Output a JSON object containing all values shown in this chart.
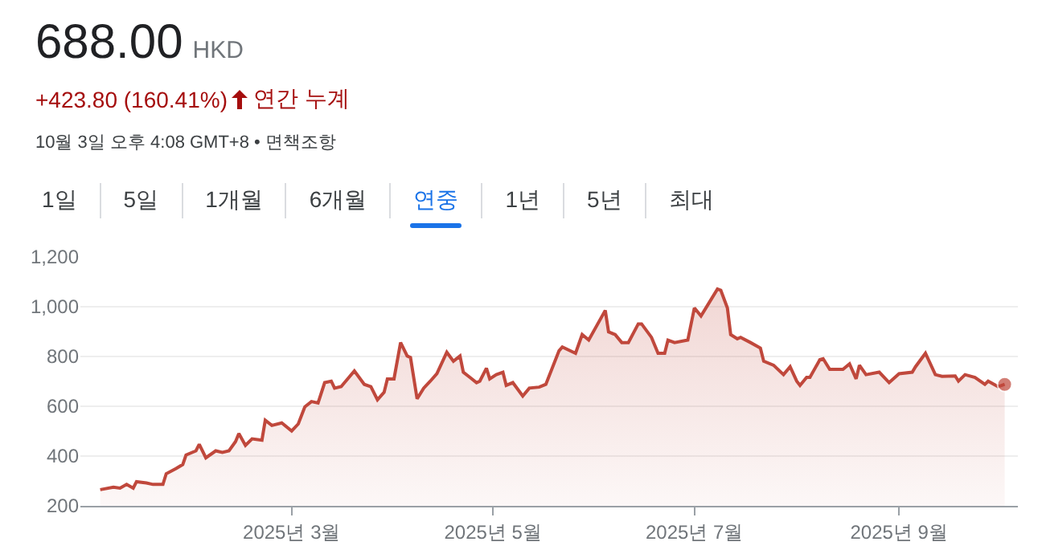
{
  "chart_data": {
    "type": "area",
    "title": "688.00",
    "subtitle": "HKD",
    "annotations": [
      "+423.80 (160.41%)",
      "연간 누계",
      "10월 3일 오후 4:08 GMT+8 • 면책조항",
      "1일",
      "5일",
      "1개월",
      "6개월",
      "연중",
      "1년",
      "5년",
      "최대"
    ],
    "x": [
      "2025-01-02",
      "2025-01-06",
      "2025-01-08",
      "2025-01-10",
      "2025-01-12",
      "2025-01-13",
      "2025-01-16",
      "2025-01-18",
      "2025-01-21",
      "2025-01-22",
      "2025-01-25",
      "2025-01-27",
      "2025-01-28",
      "2025-01-31",
      "2025-02-01",
      "2025-02-03",
      "2025-02-06",
      "2025-02-08",
      "2025-02-10",
      "2025-02-12",
      "2025-02-13",
      "2025-02-15",
      "2025-02-17",
      "2025-02-20",
      "2025-02-21",
      "2025-02-23",
      "2025-02-26",
      "2025-03-01",
      "2025-03-03",
      "2025-03-05",
      "2025-03-07",
      "2025-03-09",
      "2025-03-11",
      "2025-03-13",
      "2025-03-14",
      "2025-03-16",
      "2025-03-20",
      "2025-03-23",
      "2025-03-25",
      "2025-03-27",
      "2025-03-29",
      "2025-03-30",
      "2025-04-01",
      "2025-04-03",
      "2025-04-05",
      "2025-04-06",
      "2025-04-08",
      "2025-04-10",
      "2025-04-12",
      "2025-04-14",
      "2025-04-17",
      "2025-04-19",
      "2025-04-21",
      "2025-04-22",
      "2025-04-24",
      "2025-04-26",
      "2025-04-27",
      "2025-04-29",
      "2025-04-30",
      "2025-05-02",
      "2025-05-04",
      "2025-05-05",
      "2025-05-07",
      "2025-05-10",
      "2025-05-12",
      "2025-05-15",
      "2025-05-17",
      "2025-05-21",
      "2025-05-22",
      "2025-05-26",
      "2025-05-28",
      "2025-05-30",
      "2025-06-04",
      "2025-06-05",
      "2025-06-07",
      "2025-06-09",
      "2025-06-11",
      "2025-06-14",
      "2025-06-15",
      "2025-06-18",
      "2025-06-20",
      "2025-06-22",
      "2025-06-23",
      "2025-06-25",
      "2025-06-29",
      "2025-07-01",
      "2025-07-03",
      "2025-07-05",
      "2025-07-08",
      "2025-07-09",
      "2025-07-11",
      "2025-07-12",
      "2025-07-14",
      "2025-07-15",
      "2025-07-18",
      "2025-07-21",
      "2025-07-22",
      "2025-07-25",
      "2025-07-28",
      "2025-07-30",
      "2025-08-01",
      "2025-08-02",
      "2025-08-04",
      "2025-08-05",
      "2025-08-08",
      "2025-08-09",
      "2025-08-11",
      "2025-08-15",
      "2025-08-17",
      "2025-08-19",
      "2025-08-20",
      "2025-08-22",
      "2025-08-26",
      "2025-08-29",
      "2025-09-01",
      "2025-09-05",
      "2025-09-06",
      "2025-09-09",
      "2025-09-12",
      "2025-09-14",
      "2025-09-18",
      "2025-09-19",
      "2025-09-21",
      "2025-09-24",
      "2025-09-27",
      "2025-09-28",
      "2025-10-01",
      "2025-10-03"
    ],
    "series": [
      {
        "color": "#c0483c",
        "values": [
          265,
          275,
          271,
          286,
          271,
          297,
          292,
          286,
          286,
          329,
          350,
          366,
          404,
          421,
          447,
          393,
          421,
          415,
          421,
          458,
          490,
          443,
          469,
          464,
          544,
          523,
          533,
          501,
          529,
          598,
          619,
          613,
          695,
          701,
          673,
          679,
          742,
          688,
          679,
          626,
          656,
          710,
          710,
          856,
          802,
          796,
          630,
          673,
          701,
          731,
          817,
          781,
          802,
          737,
          716,
          695,
          701,
          753,
          710,
          727,
          737,
          684,
          695,
          641,
          673,
          677,
          688,
          823,
          838,
          813,
          888,
          866,
          985,
          899,
          888,
          856,
          856,
          931,
          931,
          877,
          813,
          813,
          866,
          856,
          866,
          995,
          963,
          1006,
          1071,
          1066,
          995,
          888,
          871,
          877,
          856,
          834,
          781,
          765,
          727,
          759,
          701,
          684,
          716,
          716,
          787,
          791,
          748,
          748,
          770,
          710,
          765,
          727,
          737,
          695,
          731,
          737,
          759,
          813,
          727,
          720,
          722,
          701,
          727,
          716,
          688,
          701,
          679,
          688
        ]
      }
    ],
    "xlim": [
      "2024-12-27",
      "2025-10-07"
    ],
    "xticks": [
      {
        "value": "2025-03-01",
        "label": "2025년 3월"
      },
      {
        "value": "2025-05-01",
        "label": "2025년 5월"
      },
      {
        "value": "2025-07-01",
        "label": "2025년 7월"
      },
      {
        "value": "2025-09-01",
        "label": "2025년 9월"
      }
    ],
    "ylim": [
      200,
      1200
    ],
    "yticks": [
      200,
      400,
      600,
      800,
      {
        "value": 1000,
        "label": "1,000"
      },
      {
        "value": 1200,
        "label": "1,200"
      }
    ],
    "grid": "y"
  }
}
